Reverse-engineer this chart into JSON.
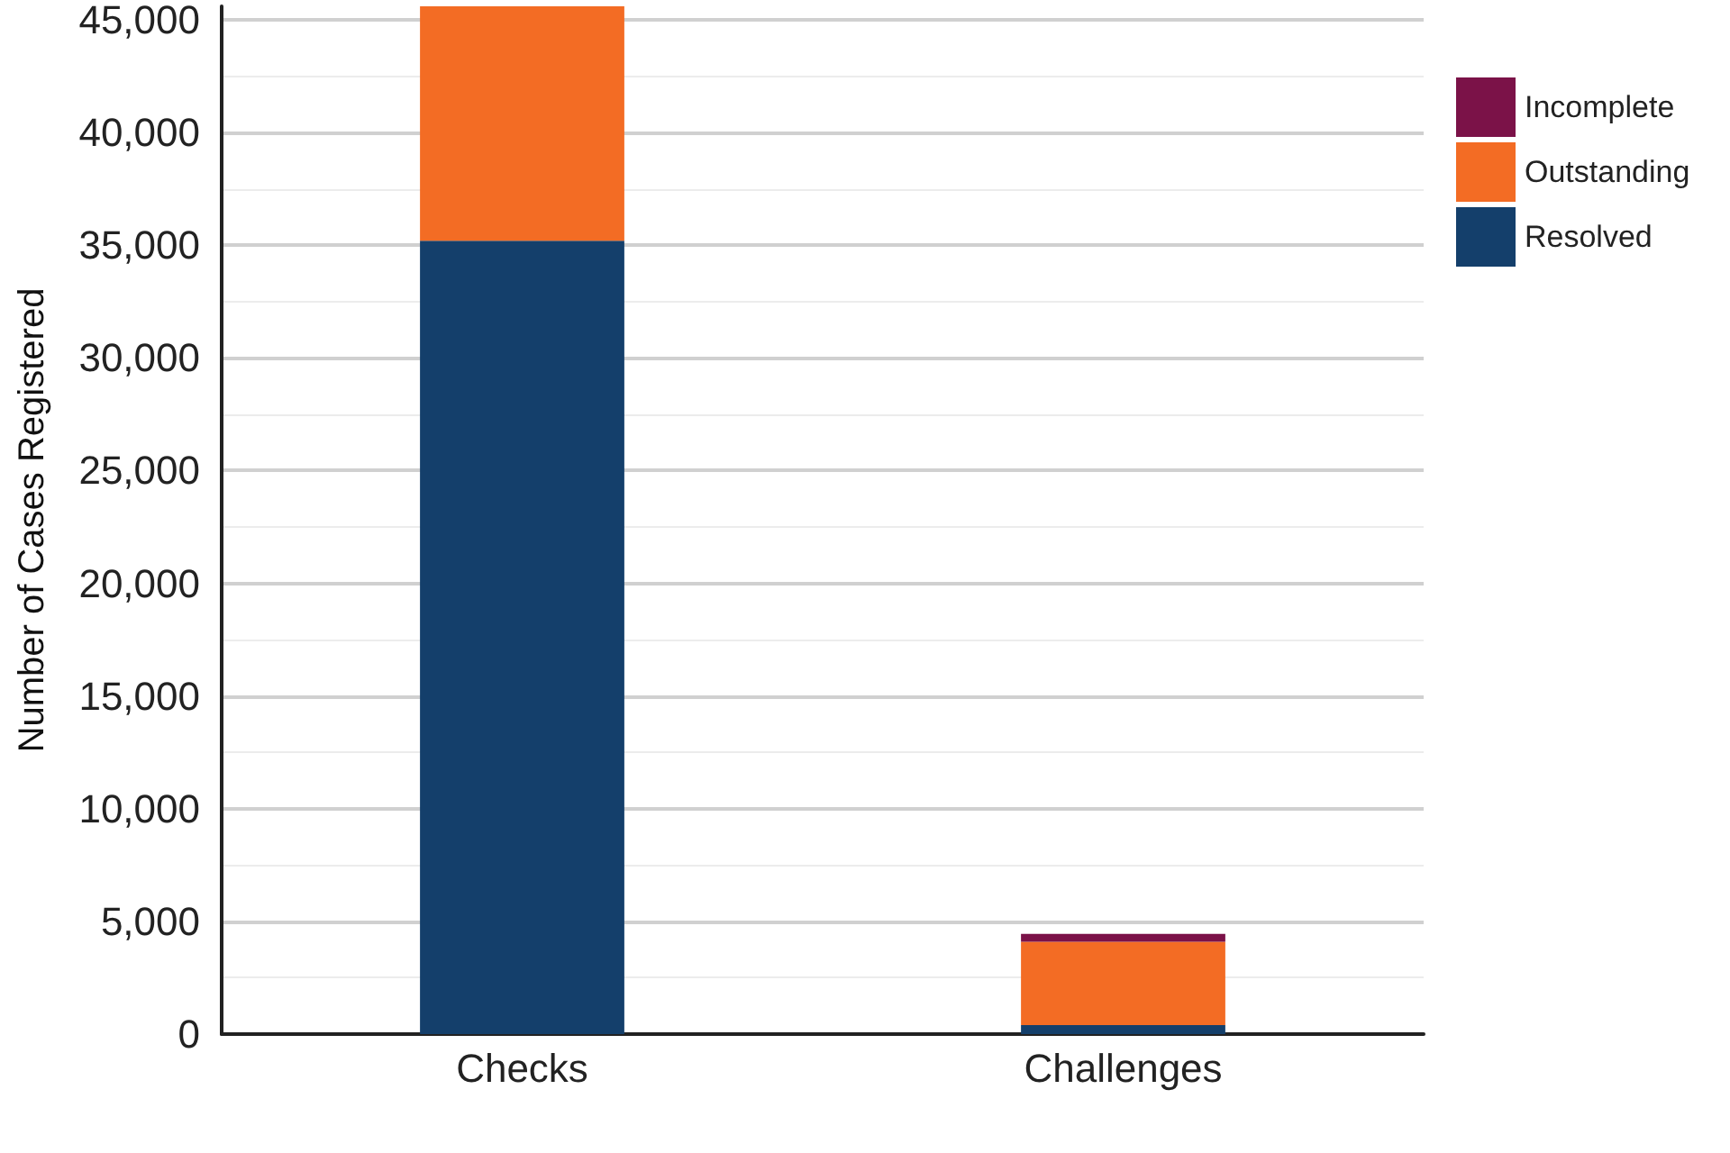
{
  "chart_data": {
    "type": "bar",
    "ylabel": "Number of Cases Registered",
    "categories": [
      "Checks",
      "Challenges"
    ],
    "series": [
      {
        "name": "Resolved",
        "color": "#143f6b",
        "values": [
          35200,
          400
        ]
      },
      {
        "name": "Outstanding",
        "color": "#f36c24",
        "values": [
          10400,
          3700
        ]
      },
      {
        "name": "Incomplete",
        "color": "#7b1248",
        "values": [
          0,
          350
        ]
      }
    ],
    "stacked": true,
    "ylim": [
      0,
      45600
    ],
    "yticks": [
      0,
      {
        "value": 5000,
        "label": "5,000"
      },
      {
        "value": 10000,
        "label": "10,000"
      },
      {
        "value": 15000,
        "label": "15,000"
      },
      {
        "value": 20000,
        "label": "20,000"
      },
      {
        "value": 25000,
        "label": "25,000"
      },
      {
        "value": 30000,
        "label": "30,000"
      },
      {
        "value": 35000,
        "label": "35,000"
      },
      {
        "value": 40000,
        "label": "40,000"
      },
      {
        "value": 45000,
        "label": "45,000"
      }
    ],
    "grid": "y",
    "legend": "top right"
  }
}
